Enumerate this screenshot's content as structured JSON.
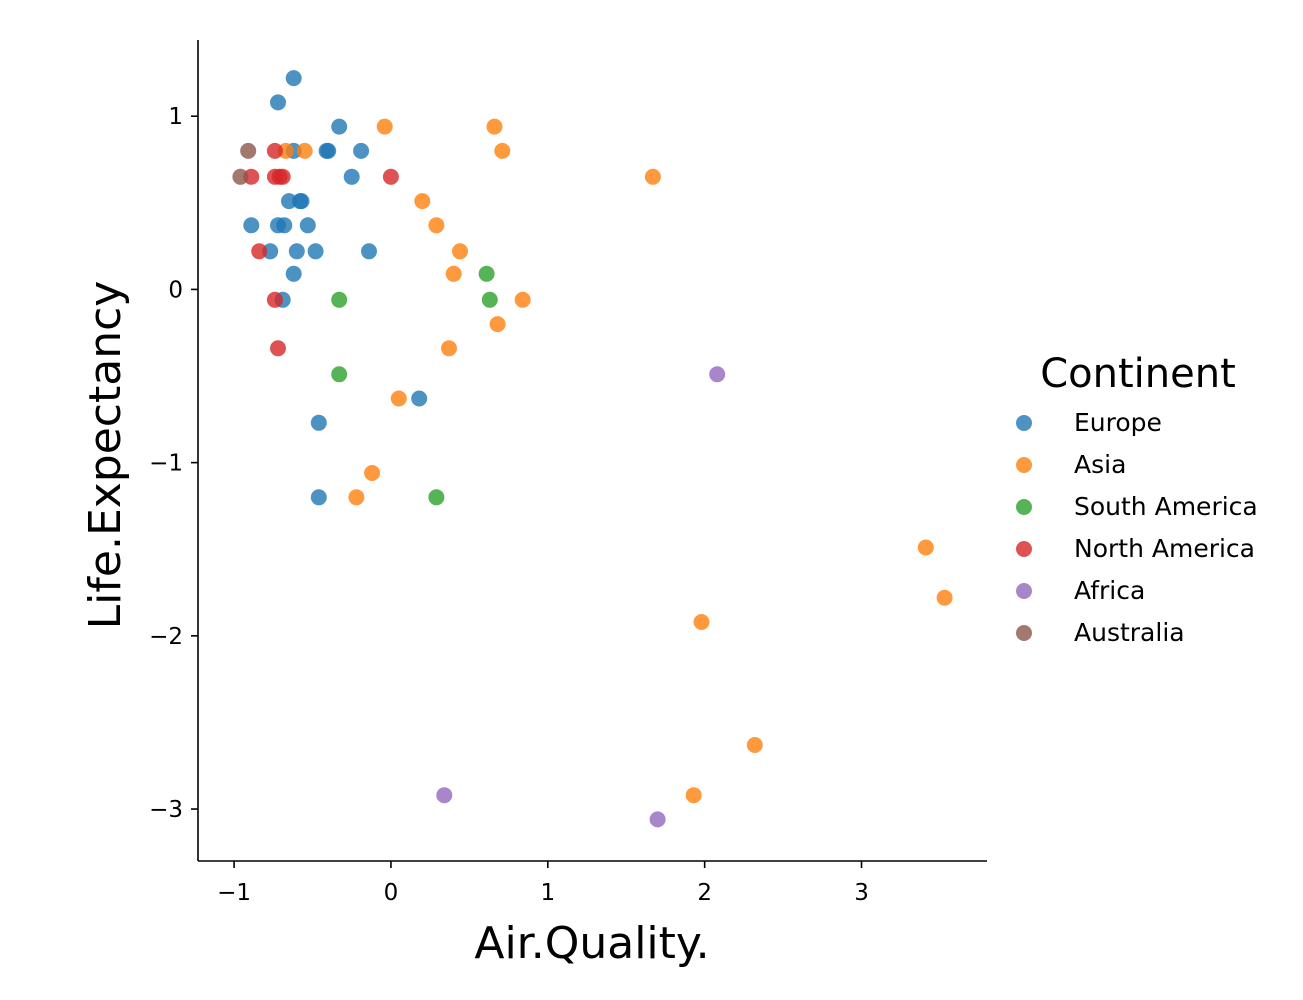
{
  "chart_data": {
    "type": "scatter",
    "xlabel": "Air.Quality.",
    "ylabel": "Life.Expectancy",
    "xlim": [
      -1.23,
      3.8
    ],
    "ylim": [
      -3.3,
      1.44
    ],
    "xticks": [
      -1,
      0,
      1,
      2,
      3
    ],
    "yticks": [
      -3,
      -2,
      -1,
      0,
      1
    ],
    "grid": false,
    "legend": {
      "title": "Continent",
      "placement": "right"
    },
    "series": [
      {
        "name": "Europe",
        "color": "#1f77b4",
        "points": [
          [
            -0.62,
            1.22
          ],
          [
            -0.72,
            1.08
          ],
          [
            -0.33,
            0.94
          ],
          [
            -0.4,
            0.8
          ],
          [
            -0.41,
            0.8
          ],
          [
            -0.19,
            0.8
          ],
          [
            -0.62,
            0.8
          ],
          [
            -0.25,
            0.65
          ],
          [
            -0.65,
            0.51
          ],
          [
            -0.58,
            0.51
          ],
          [
            -0.57,
            0.51
          ],
          [
            -0.89,
            0.37
          ],
          [
            -0.72,
            0.37
          ],
          [
            -0.68,
            0.37
          ],
          [
            -0.53,
            0.37
          ],
          [
            -0.77,
            0.22
          ],
          [
            -0.6,
            0.22
          ],
          [
            -0.48,
            0.22
          ],
          [
            -0.14,
            0.22
          ],
          [
            -0.62,
            0.09
          ],
          [
            -0.69,
            -0.06
          ],
          [
            0.18,
            -0.63
          ],
          [
            -0.46,
            -0.77
          ],
          [
            -0.46,
            -1.2
          ]
        ]
      },
      {
        "name": "Asia",
        "color": "#ff7f0e",
        "points": [
          [
            -0.04,
            0.94
          ],
          [
            0.66,
            0.94
          ],
          [
            0.71,
            0.8
          ],
          [
            -0.67,
            0.8
          ],
          [
            -0.55,
            0.8
          ],
          [
            1.67,
            0.65
          ],
          [
            0.2,
            0.51
          ],
          [
            0.29,
            0.37
          ],
          [
            0.44,
            0.22
          ],
          [
            0.4,
            0.09
          ],
          [
            0.84,
            -0.06
          ],
          [
            0.68,
            -0.2
          ],
          [
            0.37,
            -0.34
          ],
          [
            0.05,
            -0.63
          ],
          [
            -0.12,
            -1.06
          ],
          [
            -0.22,
            -1.2
          ],
          [
            3.41,
            -1.49
          ],
          [
            3.53,
            -1.78
          ],
          [
            1.98,
            -1.92
          ],
          [
            2.32,
            -2.63
          ],
          [
            1.93,
            -2.92
          ]
        ]
      },
      {
        "name": "South America",
        "color": "#2ca02c",
        "points": [
          [
            0.61,
            0.09
          ],
          [
            -0.33,
            -0.06
          ],
          [
            0.63,
            -0.06
          ],
          [
            -0.33,
            -0.49
          ],
          [
            0.29,
            -1.2
          ]
        ]
      },
      {
        "name": "North America",
        "color": "#d62728",
        "points": [
          [
            -0.74,
            0.8
          ],
          [
            -0.89,
            0.65
          ],
          [
            -0.74,
            0.65
          ],
          [
            -0.71,
            0.65
          ],
          [
            -0.69,
            0.65
          ],
          [
            0.0,
            0.65
          ],
          [
            -0.84,
            0.22
          ],
          [
            -0.74,
            -0.06
          ],
          [
            -0.72,
            -0.34
          ]
        ]
      },
      {
        "name": "Africa",
        "color": "#9467bd",
        "points": [
          [
            2.08,
            -0.49
          ],
          [
            0.34,
            -2.92
          ],
          [
            1.7,
            -3.06
          ]
        ]
      },
      {
        "name": "Australia",
        "color": "#8c564b",
        "points": [
          [
            -0.91,
            0.8
          ],
          [
            -0.96,
            0.65
          ]
        ]
      }
    ]
  }
}
